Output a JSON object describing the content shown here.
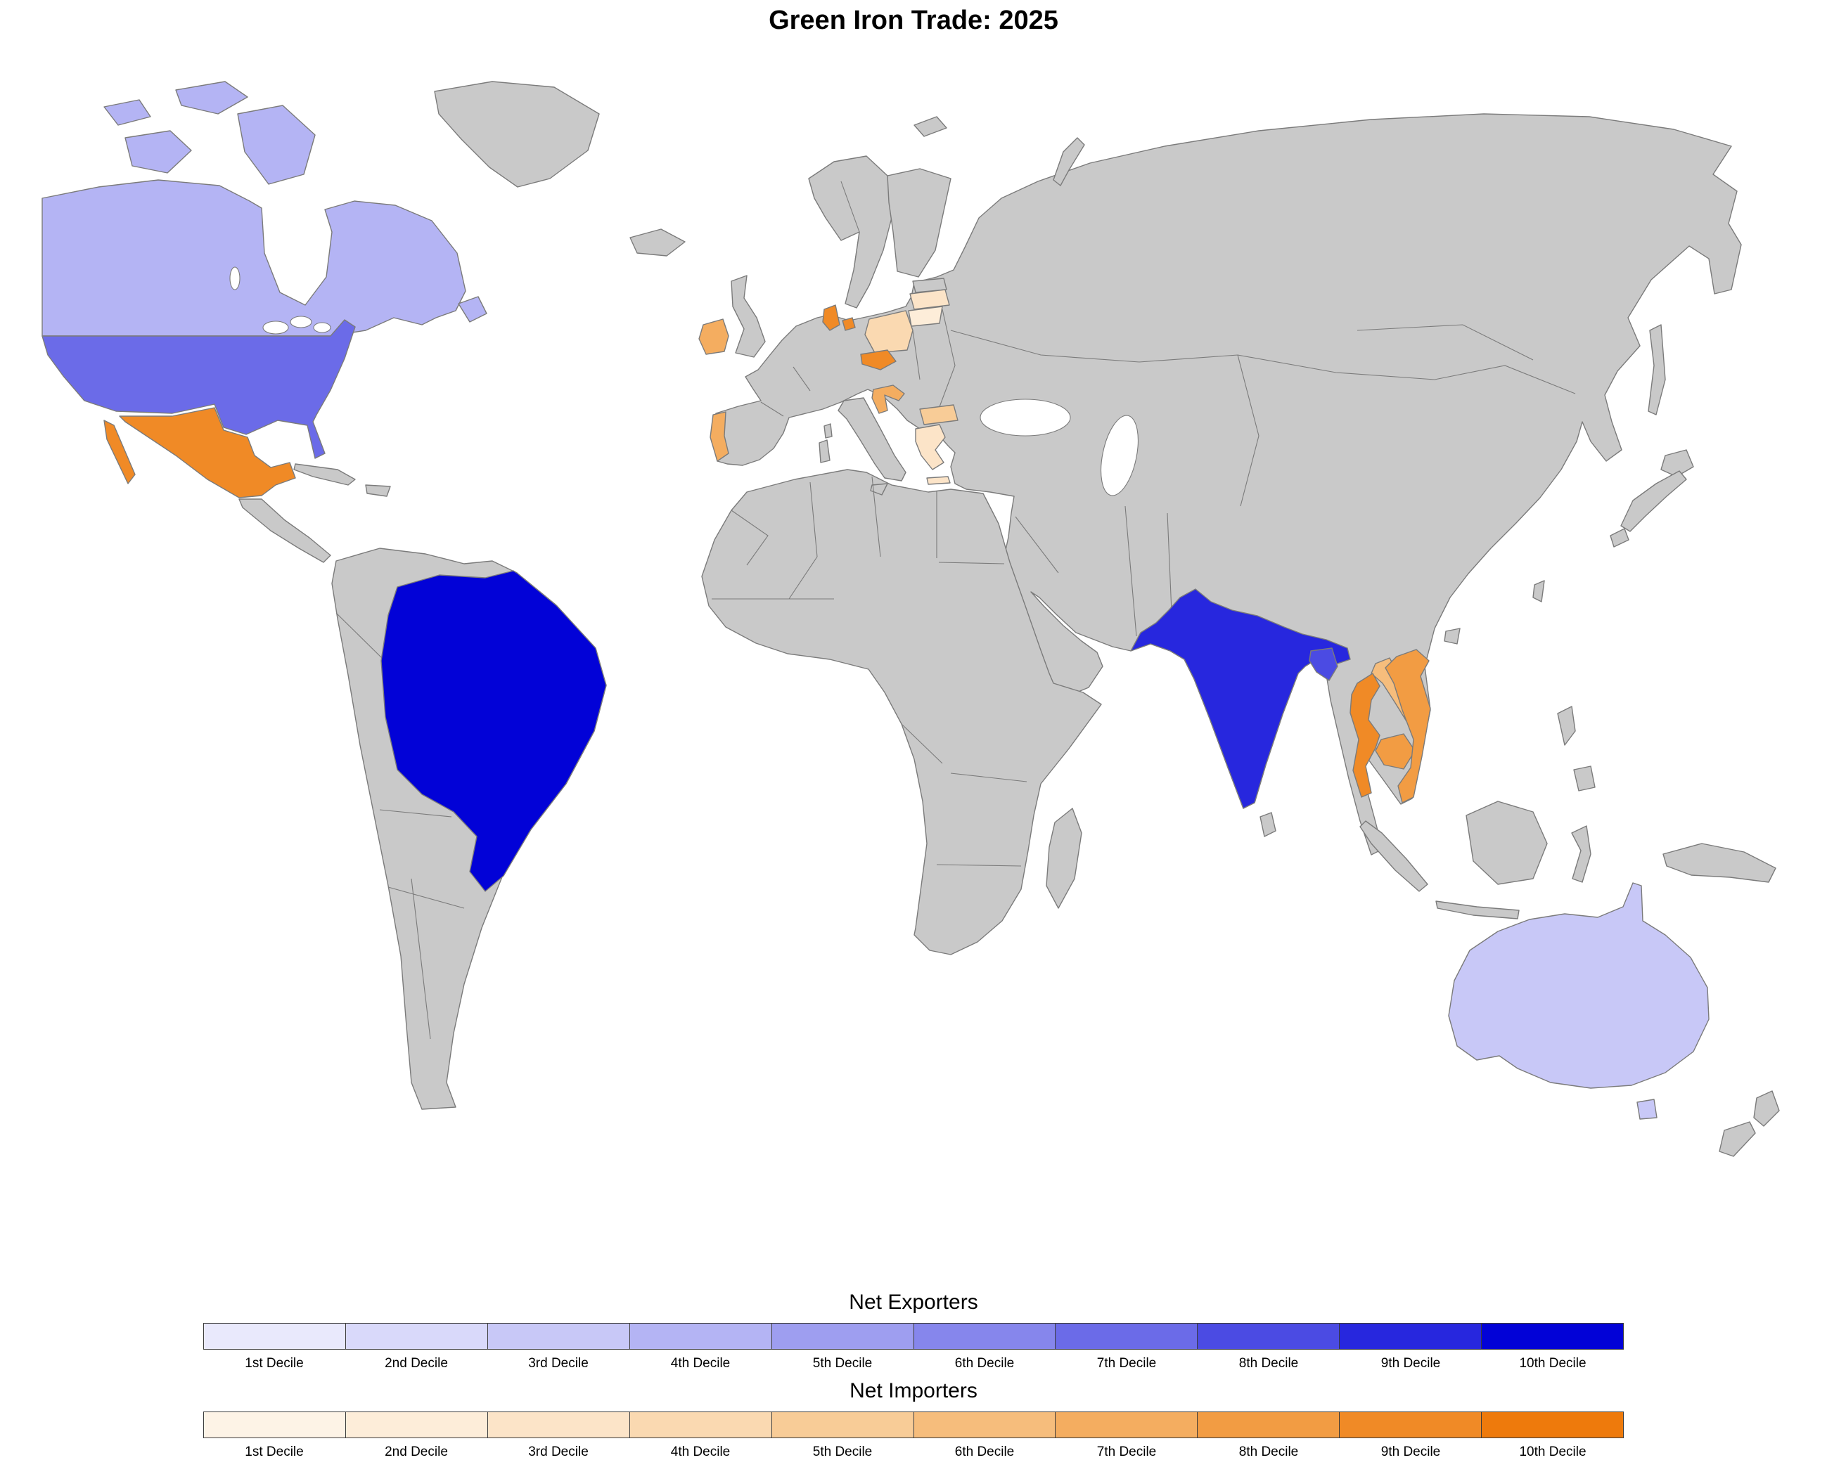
{
  "title": "Green Iron Trade: 2025",
  "chart_data": {
    "type": "choropleth",
    "title": "Green Iron Trade: 2025",
    "unit": "decile",
    "legend_decile_labels": [
      "1st Decile",
      "2nd Decile",
      "3rd Decile",
      "4th Decile",
      "5th Decile",
      "6th Decile",
      "7th Decile",
      "8th Decile",
      "9th Decile",
      "10th Decile"
    ],
    "legends": [
      {
        "title": "Net Exporters",
        "palette_key": "exporter_ramp"
      },
      {
        "title": "Net Importers",
        "palette_key": "importer_ramp"
      }
    ],
    "palettes": {
      "exporter_ramp": [
        "#e9e9fc",
        "#d9d9fa",
        "#c8c8f7",
        "#b4b4f4",
        "#9e9ef0",
        "#8686ec",
        "#6b6be8",
        "#4b4be3",
        "#2727de",
        "#0202d7"
      ],
      "importer_ramp": [
        "#fdf3e6",
        "#fdedd9",
        "#fce4c8",
        "#fad9b1",
        "#f8cc97",
        "#f6bd7c",
        "#f4ad60",
        "#f29c43",
        "#f08a26",
        "#ee7a0c"
      ]
    },
    "no_data_color": "#c9c9c9",
    "border_color": "#7b7b7b",
    "ocean_color": "#ffffff",
    "net_exporters": {
      "canada": 4,
      "united-states": 7,
      "brazil": 10,
      "australia": 3,
      "india": 9,
      "bangladesh": 8
    },
    "net_importers": {
      "mexico": 9,
      "ireland": 7,
      "portugal": 7,
      "denmark": 9,
      "poland": 4,
      "czechia": 9,
      "lithuania": 2,
      "latvia": 3,
      "croatia": 7,
      "bulgaria": 5,
      "greece": 3,
      "thailand": 9,
      "laos": 6,
      "cambodia": 8,
      "vietnam": 8
    }
  }
}
